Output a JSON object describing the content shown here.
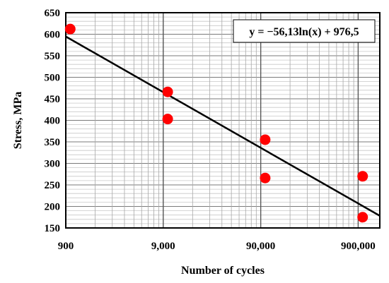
{
  "chart_data": {
    "type": "scatter",
    "xlabel": "Number of cycles",
    "ylabel": "Stress, MPa",
    "x_scale": "log",
    "xlim": [
      900,
      1500000
    ],
    "ylim": [
      150,
      650
    ],
    "x_ticks": [
      900,
      9000,
      90000,
      900000
    ],
    "x_tick_labels": [
      "900",
      "9,000",
      "90,000",
      "900,000"
    ],
    "y_ticks": [
      150,
      200,
      250,
      300,
      350,
      400,
      450,
      500,
      550,
      600,
      650
    ],
    "y_tick_labels": [
      "150",
      "200",
      "250",
      "300",
      "350",
      "400",
      "450",
      "500",
      "550",
      "600",
      "650"
    ],
    "grid": true,
    "points": [
      {
        "x": 1000,
        "y": 612
      },
      {
        "x": 10000,
        "y": 466
      },
      {
        "x": 10000,
        "y": 403
      },
      {
        "x": 100000,
        "y": 355
      },
      {
        "x": 100000,
        "y": 266
      },
      {
        "x": 1000000,
        "y": 270
      },
      {
        "x": 1000000,
        "y": 175
      }
    ],
    "point_color": "#ff0000",
    "trendline": {
      "type": "logarithmic",
      "a": -56.13,
      "b": 976.5,
      "color": "#000000"
    },
    "equation_label": "y = −56,13ln(x) + 976,5",
    "equation_position": "top-right"
  }
}
